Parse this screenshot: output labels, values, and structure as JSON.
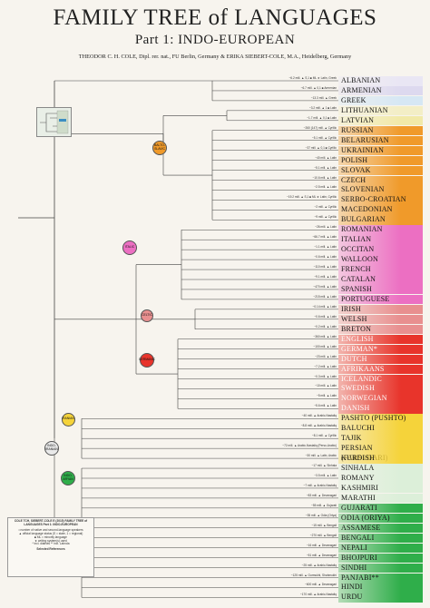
{
  "header": {
    "title": "FAMILY TREE of LANGUAGES",
    "subtitle": "Part 1: INDO-EUROPEAN",
    "authors": "THEODOR C. H. COLE, Dipl. rer. nat., FU Berlin, Germany & ERIKA SIEBERT-COLE, M.A., Heidelberg, Germany"
  },
  "colors": {
    "albanian": "#e9e6f4",
    "armenian": "#ddd9ef",
    "greek": "#d6e7f4",
    "lithuanian": "#f3eec6",
    "latvian": "#f1e9a8",
    "slavic": "#f09a2a",
    "romance": "#ec6fc2",
    "celtic": "#e88f8f",
    "germanic": "#e8342b",
    "iranian": "#f5d33a",
    "indic": "#2fae4a",
    "indo_iranian_node": "#e9e9e9",
    "indo_aryan_soft": "#dcefd9",
    "trunk": "#666666"
  },
  "nodes": {
    "balto_slavic": "BALTO-SLAVIC",
    "italic": "ITALIC",
    "celtic": "CELTIC",
    "germanic": "GERMANIC",
    "iranian": "IRANIAN",
    "indo_iranian": "INDO-IRANIAN",
    "indo_aryan": "INDO-ARYAN"
  },
  "languages": [
    {
      "name": "Albanian",
      "group": "albanian",
      "info": "~6.2 mill. ▲ S,1 ■ ML ★ Latin, Greek"
    },
    {
      "name": "Armenian",
      "group": "armenian",
      "info": "~6.7 mill. ▲ 0,1 ■ Armenian"
    },
    {
      "name": "Greek",
      "group": "greek",
      "info": "~13.3 mill. ▲ Greek"
    },
    {
      "name": "Lithuanian",
      "group": "lithuanian",
      "info": "~3.2 mill. ▲ 1 ■ Latin"
    },
    {
      "name": "Latvian",
      "group": "latvian",
      "info": "~1.7 mill. ▲ 0,1 ■ Latin"
    },
    {
      "name": "Russian",
      "group": "slavic",
      "info": "~260 (147) mill. ▲ Cyrillic"
    },
    {
      "name": "Belarusian",
      "group": "slavic",
      "info": "~5.1 mill. ▲ Cyrillic"
    },
    {
      "name": "Ukrainian",
      "group": "slavic",
      "info": "~37 mill. ▲ 0,1 ■ Cyrillic"
    },
    {
      "name": "Polish",
      "group": "slavic",
      "info": "~40 mill. ▲ Latin"
    },
    {
      "name": "Slovak",
      "group": "slavic",
      "info": "~5.1 mill. ▲ Latin"
    },
    {
      "name": "Czech",
      "group": "slavic",
      "info": "~10.6 mill. ▲ Latin"
    },
    {
      "name": "Slovenian",
      "group": "slavic",
      "info": "~2.5 mill. ▲ Latin"
    },
    {
      "name": "Serbo-Croatian",
      "group": "slavic",
      "info": "~19.2 mill. ▲ S,1 ■ ML ★ Latin, Cyrillic"
    },
    {
      "name": "Macedonian",
      "group": "slavic",
      "info": "~2 mill. ▲ Cyrillic"
    },
    {
      "name": "Bulgarian",
      "group": "slavic",
      "info": "~9 mill. ▲ Cyrillic"
    },
    {
      "name": "Romanian",
      "group": "romance",
      "info": "~26 mill. ▲ Latin"
    },
    {
      "name": "Italian",
      "group": "romance",
      "info": "~66.7 mill. ▲ Latin"
    },
    {
      "name": "Occitan",
      "group": "romance",
      "info": "~1.1 mill. ▲ Latin"
    },
    {
      "name": "Walloon",
      "group": "romance",
      "info": "~0.6 mill. ▲ Latin"
    },
    {
      "name": "French",
      "group": "romance",
      "info": "~110 mill. ▲ Latin"
    },
    {
      "name": "Catalan",
      "group": "romance",
      "info": "~9.1 mill. ▲ Latin"
    },
    {
      "name": "Spanish",
      "group": "romance",
      "info": "~470 mill. ▲ Latin"
    },
    {
      "name": "Portuguese",
      "group": "romance",
      "info": "~215 mill. ▲ Latin"
    },
    {
      "name": "Irish",
      "group": "celtic",
      "info": "~0.14 mill. ▲ Latin"
    },
    {
      "name": "Welsh",
      "group": "celtic",
      "info": "~0.6 mill. ▲ Latin"
    },
    {
      "name": "Breton",
      "group": "celtic",
      "info": "~0.2 mill. ▲ Latin"
    },
    {
      "name": "English",
      "group": "germanic",
      "info": "~360 mill. ▲ Latin"
    },
    {
      "name": "German*",
      "group": "germanic",
      "info": "~100 mill. ▲ Latin"
    },
    {
      "name": "Dutch",
      "group": "germanic",
      "info": "~23 mill. ▲ Latin"
    },
    {
      "name": "Afrikaans",
      "group": "germanic",
      "info": "~7.2 mill. ▲ Latin"
    },
    {
      "name": "Icelandic",
      "group": "germanic",
      "info": "~0.3 mill. ▲ Latin"
    },
    {
      "name": "Swedish",
      "group": "germanic",
      "info": "~10 mill. ▲ Latin"
    },
    {
      "name": "Norwegian",
      "group": "germanic",
      "info": "~5 mill. ▲ Latin"
    },
    {
      "name": "Danish",
      "group": "germanic",
      "info": "~5.6 mill. ▲ Latin"
    },
    {
      "name": "Pashto (Pushto)",
      "group": "iranian",
      "info": "~40 mill. ▲ Arabic-Nastaliq"
    },
    {
      "name": "Baluchi",
      "group": "iranian",
      "info": "~8.8 mill. ▲ Arabic-Nastaliq"
    },
    {
      "name": "Tajik",
      "group": "iranian",
      "info": "~8.1 mill. ▲ Cyrillic"
    },
    {
      "name": "Persian (Farsi/Dari)",
      "group": "iranian",
      "info": "~72 mill. ▲ Arabic-Nastaliq (Perso-Arabic)"
    },
    {
      "name": "Kurdish",
      "group": "iranian",
      "info": "~30 mill. ▲ Latin, Arabic"
    },
    {
      "name": "Sinhala",
      "group": "indic_soft",
      "info": "~17 mill. ▲ Sinhala"
    },
    {
      "name": "Romany",
      "group": "indic_soft",
      "info": "~3.5 mill. ▲ Latin"
    },
    {
      "name": "Kashmiri",
      "group": "indic_soft",
      "info": "~7 mill. ▲ Arabic-Nastaliq"
    },
    {
      "name": "Marathi",
      "group": "indic_soft",
      "info": "~83 mill. ▲ Devanagari"
    },
    {
      "name": "Gujarati",
      "group": "indic",
      "info": "~55 mill. ▲ Gujarati"
    },
    {
      "name": "Odia (Oriya)",
      "group": "indic",
      "info": "~35 mill. ▲ Odia (Oriya)"
    },
    {
      "name": "Assamese",
      "group": "indic",
      "info": "~15 mill. ▲ Bengali"
    },
    {
      "name": "Bengali",
      "group": "indic",
      "info": "~270 mill. ▲ Bengali"
    },
    {
      "name": "Nepali",
      "group": "indic",
      "info": "~16 mill. ▲ Devanagari"
    },
    {
      "name": "Bhojpuri",
      "group": "indic",
      "info": "~51 mill. ▲ Devanagari"
    },
    {
      "name": "Sindhi",
      "group": "indic",
      "info": "~25 mill. ▲ Arabic-Nastaliq"
    },
    {
      "name": "Panjabi**",
      "group": "indic",
      "info": "~125 mill. ▲ Gurmukhi, Shahmukhi"
    },
    {
      "name": "Hindi",
      "group": "indic",
      "info": "~600 mill. ▲ Devanagari"
    },
    {
      "name": "Urdu",
      "group": "indic",
      "info": "~170 mill. ▲ Arabic-Nastaliq"
    }
  ],
  "legend": {
    "title": "COLE TCH, SIEBERT-COLE E (2015) FAMILY TREE of LANGUAGES Part 1: INDO-EUROPEAN",
    "lines": [
      "• number of native and second-language speakers",
      "▲ official language status (S = state, 1 = regional)",
      "■ ML = minority language",
      "★ writing system(s) used",
      "* incl. dialects   ** incl. Lahnda",
      "Selected References"
    ]
  }
}
